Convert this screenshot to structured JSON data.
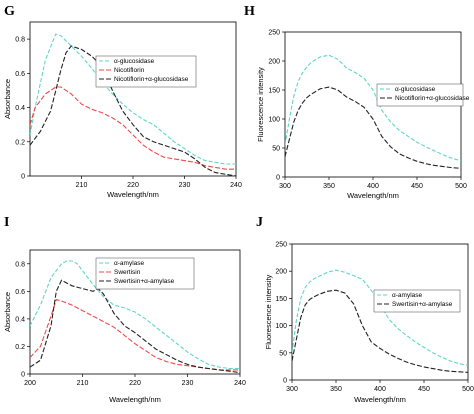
{
  "panels": [
    {
      "letter": "G"
    },
    {
      "letter": "H"
    },
    {
      "letter": "I"
    },
    {
      "letter": "J"
    }
  ],
  "colors": {
    "enzyme": "#5fd6c6",
    "compound": "#ee4a4a",
    "complex": "#222222"
  },
  "chart_data": [
    {
      "id": "G",
      "type": "line",
      "xlabel": "Wavelength/nm",
      "ylabel": "Absorbance",
      "xlim": [
        200,
        240
      ],
      "ylim": [
        0,
        0.9
      ],
      "xticks": [
        "210",
        "220",
        "230",
        "240"
      ],
      "yticks": [
        "0",
        "0.2",
        "0.4",
        "0.6",
        "0.8"
      ],
      "legend": "upper-right",
      "series": [
        {
          "name": "α-glucosidase",
          "style": "enzyme",
          "x": [
            200,
            201,
            203,
            205,
            206,
            208,
            210,
            212,
            214,
            216,
            218,
            220,
            222,
            224,
            226,
            228,
            230,
            232,
            234,
            236,
            238,
            240
          ],
          "y": [
            0.24,
            0.4,
            0.68,
            0.83,
            0.82,
            0.76,
            0.7,
            0.63,
            0.55,
            0.48,
            0.42,
            0.37,
            0.33,
            0.3,
            0.25,
            0.2,
            0.16,
            0.12,
            0.09,
            0.08,
            0.07,
            0.07
          ]
        },
        {
          "name": "Nicotiflorin",
          "style": "compound",
          "x": [
            200,
            201,
            203,
            205,
            206,
            208,
            210,
            212,
            214,
            216,
            218,
            220,
            222,
            224,
            226,
            228,
            230,
            232,
            234,
            236,
            238,
            240
          ],
          "y": [
            0.3,
            0.4,
            0.48,
            0.52,
            0.52,
            0.48,
            0.42,
            0.39,
            0.37,
            0.34,
            0.3,
            0.24,
            0.18,
            0.14,
            0.11,
            0.1,
            0.09,
            0.08,
            0.06,
            0.05,
            0.04,
            0.04
          ]
        },
        {
          "name": "Nicotiflorin+α-glucosidase",
          "style": "complex",
          "x": [
            200,
            202,
            204,
            205,
            206,
            207,
            208,
            210,
            212,
            214,
            216,
            218,
            220,
            222,
            224,
            226,
            228,
            230,
            232,
            234,
            236,
            238,
            240
          ],
          "y": [
            0.18,
            0.26,
            0.38,
            0.5,
            0.62,
            0.72,
            0.76,
            0.74,
            0.7,
            0.64,
            0.5,
            0.38,
            0.3,
            0.23,
            0.2,
            0.18,
            0.16,
            0.14,
            0.1,
            0.05,
            0.02,
            0.01,
            0.0
          ]
        }
      ]
    },
    {
      "id": "H",
      "type": "line",
      "xlabel": "Wavelength/nm",
      "ylabel": "Fluorescence intensity",
      "xlim": [
        300,
        500
      ],
      "ylim": [
        0,
        250
      ],
      "xticks": [
        "300",
        "350",
        "400",
        "450",
        "500"
      ],
      "yticks": [
        "0",
        "50",
        "100",
        "150",
        "200",
        "250"
      ],
      "legend": "upper-right",
      "series": [
        {
          "name": "α-glucosidase",
          "style": "enzyme",
          "x": [
            300,
            305,
            310,
            315,
            320,
            325,
            330,
            340,
            350,
            360,
            370,
            380,
            390,
            400,
            410,
            420,
            430,
            440,
            450,
            460,
            470,
            480,
            490,
            500
          ],
          "y": [
            55,
            100,
            140,
            165,
            180,
            190,
            198,
            207,
            210,
            203,
            188,
            180,
            170,
            150,
            115,
            95,
            80,
            70,
            60,
            52,
            45,
            38,
            32,
            28
          ]
        },
        {
          "name": "Nicotiflorin+α-glucosidase",
          "style": "complex",
          "x": [
            300,
            305,
            310,
            315,
            320,
            325,
            330,
            340,
            350,
            360,
            370,
            380,
            390,
            400,
            410,
            420,
            430,
            440,
            450,
            460,
            470,
            480,
            490,
            500
          ],
          "y": [
            35,
            65,
            95,
            115,
            128,
            137,
            143,
            152,
            155,
            150,
            138,
            130,
            120,
            100,
            70,
            52,
            40,
            33,
            27,
            23,
            20,
            18,
            16,
            15
          ]
        }
      ]
    },
    {
      "id": "I",
      "type": "line",
      "xlabel": "Wavelength/nm",
      "ylabel": "Absorbance",
      "xlim": [
        200,
        240
      ],
      "ylim": [
        0,
        0.9
      ],
      "xticks": [
        "200",
        "210",
        "220",
        "230",
        "240"
      ],
      "yticks": [
        "0",
        "0.2",
        "0.4",
        "0.6",
        "0.8"
      ],
      "legend": "upper-right",
      "series": [
        {
          "name": "α-amylase",
          "style": "enzyme",
          "x": [
            200,
            202,
            204,
            206,
            207,
            208,
            209,
            210,
            212,
            214,
            216,
            218,
            220,
            222,
            224,
            226,
            228,
            230,
            232,
            234,
            236,
            238,
            240
          ],
          "y": [
            0.35,
            0.5,
            0.7,
            0.8,
            0.82,
            0.82,
            0.8,
            0.75,
            0.65,
            0.56,
            0.5,
            0.48,
            0.45,
            0.4,
            0.34,
            0.28,
            0.22,
            0.16,
            0.11,
            0.07,
            0.05,
            0.04,
            0.04
          ]
        },
        {
          "name": "Swertisin",
          "style": "compound",
          "x": [
            200,
            202,
            204,
            205,
            206,
            208,
            210,
            212,
            214,
            216,
            218,
            220,
            222,
            224,
            226,
            228,
            230,
            232,
            234,
            236,
            238,
            240
          ],
          "y": [
            0.12,
            0.2,
            0.42,
            0.54,
            0.53,
            0.5,
            0.46,
            0.42,
            0.38,
            0.34,
            0.28,
            0.22,
            0.17,
            0.12,
            0.09,
            0.07,
            0.06,
            0.05,
            0.04,
            0.03,
            0.03,
            0.03
          ]
        },
        {
          "name": "Swertisin+α-amylase",
          "style": "complex",
          "x": [
            200,
            202,
            204,
            205,
            206,
            208,
            210,
            212,
            213,
            214,
            216,
            218,
            220,
            222,
            224,
            226,
            228,
            230,
            232,
            234,
            236,
            238,
            240
          ],
          "y": [
            0.05,
            0.1,
            0.35,
            0.6,
            0.68,
            0.64,
            0.62,
            0.6,
            0.62,
            0.58,
            0.44,
            0.35,
            0.3,
            0.24,
            0.18,
            0.14,
            0.1,
            0.07,
            0.05,
            0.04,
            0.03,
            0.02,
            0.01
          ]
        }
      ]
    },
    {
      "id": "J",
      "type": "line",
      "xlabel": "Wavelength/nm",
      "ylabel": "Fluorescence intensity",
      "xlim": [
        300,
        500
      ],
      "ylim": [
        0,
        250
      ],
      "xticks": [
        "300",
        "350",
        "400",
        "450",
        "500"
      ],
      "yticks": [
        "0",
        "50",
        "100",
        "150",
        "200",
        "250"
      ],
      "legend": "upper-right",
      "series": [
        {
          "name": "α-amylase",
          "style": "enzyme",
          "x": [
            300,
            305,
            310,
            315,
            320,
            325,
            330,
            340,
            350,
            360,
            370,
            380,
            390,
            400,
            410,
            420,
            430,
            440,
            450,
            460,
            470,
            480,
            490,
            500
          ],
          "y": [
            50,
            110,
            150,
            170,
            180,
            186,
            190,
            198,
            202,
            198,
            192,
            185,
            165,
            140,
            112,
            95,
            82,
            70,
            60,
            50,
            42,
            35,
            30,
            27
          ]
        },
        {
          "name": "Swertisin+α-amylase",
          "style": "complex",
          "x": [
            300,
            305,
            310,
            315,
            320,
            325,
            330,
            340,
            350,
            360,
            370,
            380,
            390,
            400,
            410,
            420,
            430,
            440,
            450,
            460,
            470,
            480,
            490,
            500
          ],
          "y": [
            35,
            75,
            115,
            138,
            148,
            153,
            157,
            163,
            165,
            160,
            140,
            100,
            70,
            58,
            48,
            40,
            33,
            28,
            24,
            21,
            18,
            16,
            15,
            14
          ]
        }
      ]
    }
  ]
}
